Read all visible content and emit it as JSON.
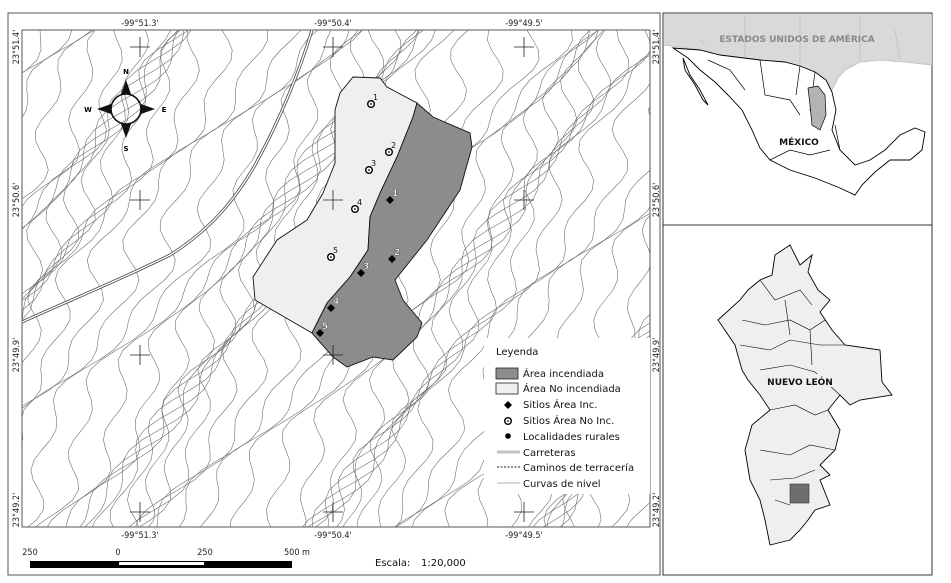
{
  "map": {
    "lon_labels": [
      "-99°51.3'",
      "-99°50.4'",
      "-99°49.5'"
    ],
    "lat_labels": [
      "23°51.4'",
      "23°50.6'",
      "23°49.9'",
      "23°49.2'"
    ],
    "compass": {
      "n": "N",
      "s": "S",
      "e": "E",
      "w": "W"
    },
    "sites_no_inc": [
      "1",
      "2",
      "3",
      "4",
      "5"
    ],
    "sites_inc": [
      "1",
      "2",
      "3",
      "4",
      "5"
    ],
    "colors": {
      "burned": "#8c8c8c",
      "unburned": "#eef0ef",
      "contour": "#6f6f6f"
    }
  },
  "legend": {
    "title": "Leyenda",
    "items": [
      {
        "label": "Área incendiada",
        "symbol": "filled-box-dark"
      },
      {
        "label": "Área No incendiada",
        "symbol": "filled-box-light"
      },
      {
        "label": "Sitios Área Inc.",
        "symbol": "diamond"
      },
      {
        "label": "Sitios Área No Inc.",
        "symbol": "ring-dot"
      },
      {
        "label": "Localidades rurales",
        "symbol": "dot"
      },
      {
        "label": "Carreteras",
        "symbol": "double-line"
      },
      {
        "label": "Caminos de terracería",
        "symbol": "dashed-line"
      },
      {
        "label": "Curvas de nivel",
        "symbol": "thin-line"
      }
    ]
  },
  "scalebar": {
    "labels": [
      "250",
      "0",
      "250",
      "500 m"
    ],
    "scale_label": "Escala:",
    "scale_value": "1:20,000"
  },
  "inset_country": {
    "usa_label": "ESTADOS UNIDOS DE AMÉRICA",
    "mexico_label": "MÉXICO"
  },
  "inset_state": {
    "label": "NUEVO LEÓN"
  }
}
